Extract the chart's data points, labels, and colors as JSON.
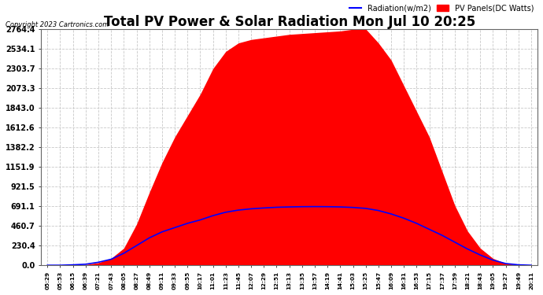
{
  "title": "Total PV Power & Solar Radiation Mon Jul 10 20:25",
  "copyright": "Copyright 2023 Cartronics.com",
  "legend_radiation": "Radiation(w/m2)",
  "legend_pv": "PV Panels(DC Watts)",
  "yticks": [
    0.0,
    230.4,
    460.7,
    691.1,
    921.5,
    1151.9,
    1382.2,
    1612.6,
    1843.0,
    2073.3,
    2303.7,
    2534.1,
    2764.4
  ],
  "ymax": 2764.4,
  "ymin": 0.0,
  "background_color": "#ffffff",
  "grid_color": "#c8c8c8",
  "pv_fill_color": "#ff0000",
  "radiation_line_color": "#0000ff",
  "title_fontsize": 12,
  "xtick_labels": [
    "05:29",
    "05:53",
    "06:15",
    "06:39",
    "07:21",
    "07:43",
    "08:05",
    "08:27",
    "08:49",
    "09:11",
    "09:33",
    "09:55",
    "10:17",
    "11:01",
    "11:23",
    "11:45",
    "12:07",
    "12:29",
    "12:51",
    "13:13",
    "13:35",
    "13:57",
    "14:19",
    "14:41",
    "15:03",
    "15:25",
    "15:47",
    "16:09",
    "16:31",
    "16:53",
    "17:15",
    "17:37",
    "17:59",
    "18:21",
    "18:43",
    "19:05",
    "19:27",
    "19:49",
    "20:11"
  ],
  "pv_data": [
    0,
    0,
    2,
    8,
    30,
    80,
    200,
    480,
    850,
    1200,
    1500,
    1750,
    2000,
    2300,
    2500,
    2600,
    2640,
    2660,
    2680,
    2700,
    2710,
    2720,
    2730,
    2740,
    2760,
    2764,
    2600,
    2400,
    2100,
    1800,
    1500,
    1100,
    700,
    400,
    200,
    80,
    20,
    3,
    0
  ],
  "radiation_data": [
    0,
    0,
    5,
    12,
    35,
    70,
    140,
    230,
    320,
    390,
    440,
    490,
    530,
    580,
    620,
    645,
    660,
    670,
    678,
    682,
    685,
    686,
    685,
    682,
    676,
    665,
    640,
    600,
    550,
    490,
    420,
    350,
    270,
    190,
    120,
    60,
    20,
    5,
    0
  ]
}
